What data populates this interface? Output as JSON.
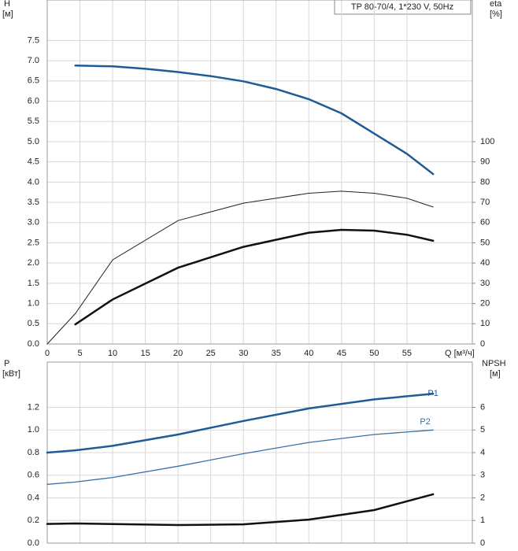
{
  "chart_data": [
    {
      "type": "line",
      "title": "TP 80-70/4, 1*230 V, 50Hz",
      "ylabel": "H",
      "yunit": "[м]",
      "y2label": "eta",
      "y2unit": "[%]",
      "xlabel": "Q [м³/ч]",
      "xlim": [
        0,
        65
      ],
      "xticks": [
        0,
        5,
        10,
        15,
        20,
        25,
        30,
        35,
        40,
        45,
        50,
        55
      ],
      "ylim": [
        0,
        8.5
      ],
      "yticks": [
        {
          "value": 0,
          "label": "0.0"
        },
        0.5,
        {
          "value": 1,
          "label": "1.0"
        },
        1.5,
        {
          "value": 2,
          "label": "2.0"
        },
        2.5,
        {
          "value": 3,
          "label": "3.0"
        },
        3.5,
        {
          "value": 4,
          "label": "4.0"
        },
        4.5,
        {
          "value": 5,
          "label": "5.0"
        },
        5.5,
        {
          "value": 6,
          "label": "6.0"
        },
        6.5,
        {
          "value": 7,
          "label": "7.0"
        },
        7.5
      ],
      "y2lim": [
        0,
        170
      ],
      "y2ticks": [
        0,
        10,
        20,
        30,
        40,
        50,
        60,
        70,
        80,
        90,
        100
      ],
      "grid": true,
      "series": [
        {
          "color": "#1f5b96",
          "x": [
            4.3,
            10,
            15,
            20,
            25,
            30,
            35,
            40,
            45,
            50,
            55,
            59
          ],
          "values": [
            6.88,
            6.86,
            6.8,
            6.72,
            6.62,
            6.49,
            6.3,
            6.05,
            5.7,
            5.2,
            4.7,
            4.2
          ]
        },
        {
          "color": "#222222",
          "axis": "y2",
          "x": [
            0,
            4.3,
            10,
            20,
            30,
            40,
            45,
            50,
            55,
            59
          ],
          "values": [
            0,
            15,
            41.6,
            61,
            69.6,
            74.5,
            75.5,
            74.5,
            72,
            67.7
          ]
        },
        {
          "color": "#111111",
          "axis": "y2",
          "x": [
            4.3,
            10,
            20,
            30,
            40,
            45,
            50,
            55,
            59
          ],
          "values": [
            9.7,
            22,
            37.7,
            48,
            55,
            56.4,
            56,
            54,
            51
          ]
        }
      ]
    },
    {
      "type": "line",
      "ylabel": "P",
      "yunit": "[кВт]",
      "y2label": "NPSH",
      "y2unit": "[м]",
      "xlim": [
        0,
        65
      ],
      "ylim": [
        0,
        1.6
      ],
      "yticks": [
        {
          "value": 0,
          "label": "0.0"
        },
        0.2,
        0.4,
        0.6,
        0.8,
        {
          "value": 1,
          "label": "1.0"
        },
        1.2
      ],
      "y2lim": [
        0,
        8
      ],
      "y2ticks": [
        0,
        1,
        2,
        3,
        4,
        5,
        6
      ],
      "grid": true,
      "series": [
        {
          "name": "P1",
          "color": "#1f5b96",
          "x": [
            0,
            4.3,
            10,
            20,
            30,
            40,
            50,
            59
          ],
          "values": [
            0.8,
            0.82,
            0.86,
            0.96,
            1.08,
            1.19,
            1.27,
            1.32
          ]
        },
        {
          "name": "P2",
          "color": "#3a6fa8",
          "x": [
            0,
            4.3,
            10,
            20,
            30,
            40,
            50,
            59
          ],
          "values": [
            0.52,
            0.54,
            0.58,
            0.68,
            0.79,
            0.89,
            0.96,
            1.0
          ]
        },
        {
          "color": "#111111",
          "axis": "y2",
          "x": [
            0,
            4.3,
            20,
            30,
            40,
            50,
            59
          ],
          "values": [
            0.85,
            0.87,
            0.8,
            0.83,
            1.04,
            1.46,
            2.16
          ]
        }
      ]
    }
  ]
}
